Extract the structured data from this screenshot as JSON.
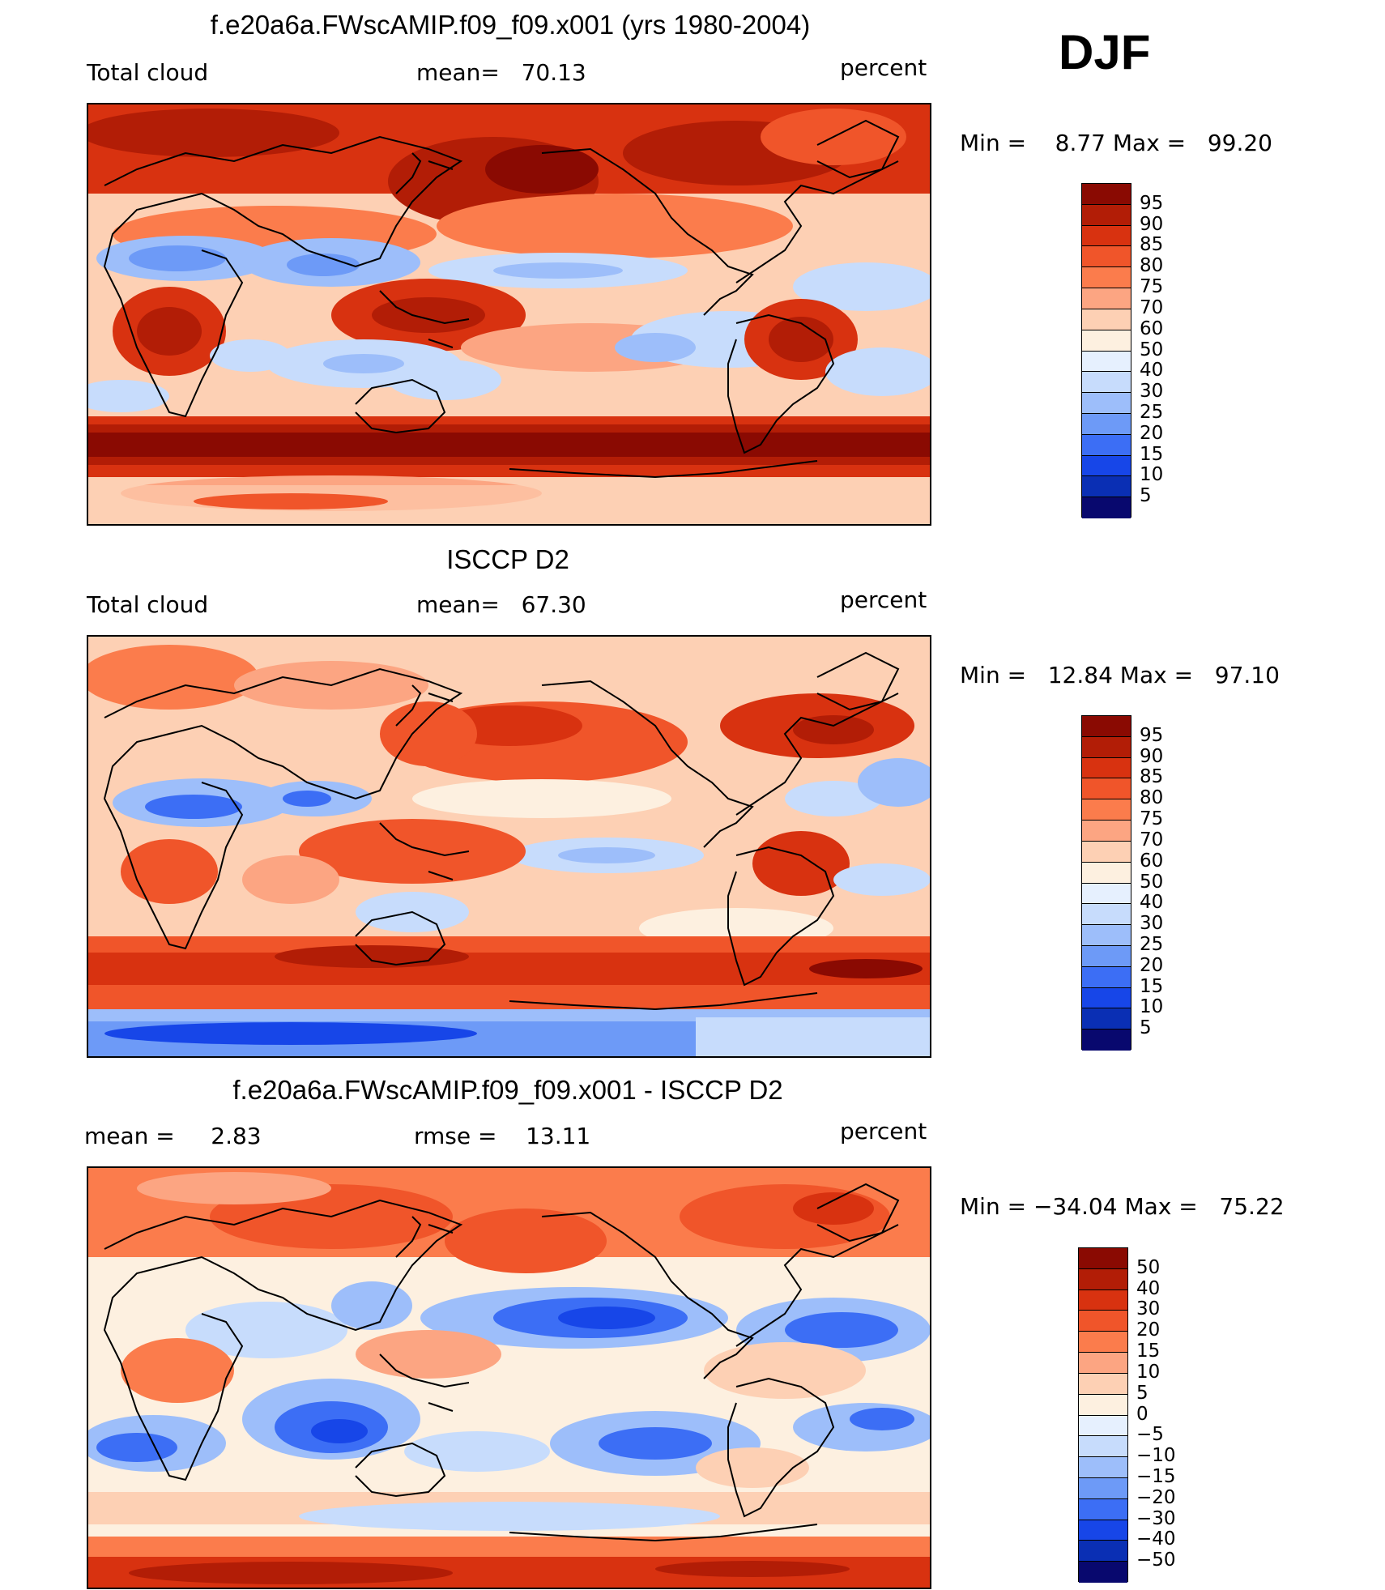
{
  "season": "DJF",
  "scale_colors": [
    "#08086e",
    "#0a2fb4",
    "#1746e8",
    "#3c6ef5",
    "#6d9af7",
    "#9dbefa",
    "#c7dcfc",
    "#e6f0fe",
    "#fdf0e0",
    "#fdd0b4",
    "#fca582",
    "#fb7c4c",
    "#f0552a",
    "#d83210",
    "#b21d06",
    "#8a0a02"
  ],
  "scale_labels": {
    "abs": [
      "95",
      "90",
      "85",
      "80",
      "75",
      "70",
      "60",
      "50",
      "40",
      "30",
      "25",
      "20",
      "15",
      "10",
      "5"
    ],
    "diff": [
      "50",
      "40",
      "30",
      "20",
      "15",
      "10",
      "5",
      "0",
      "−5",
      "−10",
      "−15",
      "−20",
      "−30",
      "−40",
      "−50"
    ]
  },
  "panels": [
    {
      "title": "f.e20a6a.FWscAMIP.f09_f09.x001 (yrs 1980-2004)",
      "left_label": "Total cloud",
      "middle_label": "mean=   70.13",
      "units": "percent",
      "minmax": "Min =    8.77 Max =   99.20"
    },
    {
      "title": "ISCCP D2",
      "left_label": "Total cloud",
      "middle_label": "mean=   67.30",
      "units": "percent",
      "minmax": "Min =   12.84 Max =   97.10"
    },
    {
      "title": "f.e20a6a.FWscAMIP.f09_f09.x001 - ISCCP D2",
      "left_label": "mean =     2.83",
      "middle_label": "rmse =    13.11",
      "units": "percent",
      "minmax": "Min = −34.04 Max =   75.22"
    }
  ]
}
